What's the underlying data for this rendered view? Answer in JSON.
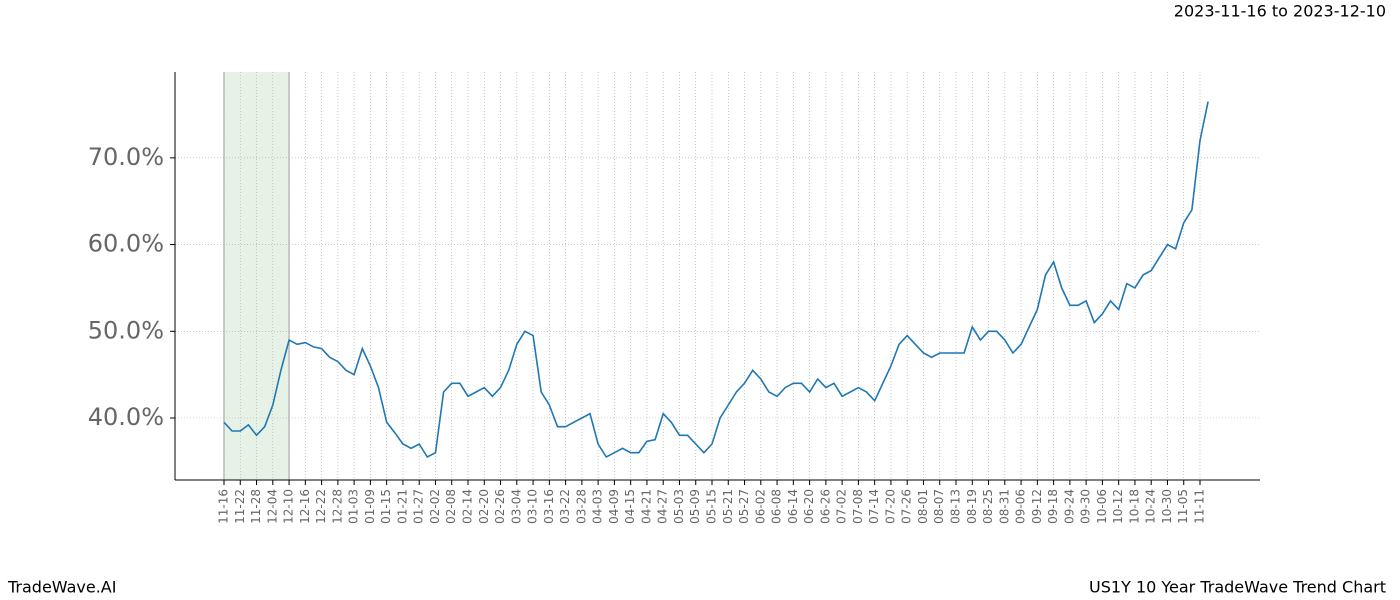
{
  "chart_data": {
    "type": "line",
    "title": "2023-11-16 to 2023-12-10",
    "footer_left": "TradeWave.AI",
    "footer_right": "US1Y 10 Year TradeWave Trend Chart",
    "categories": [
      "11-16",
      null,
      "11-22",
      null,
      "11-28",
      null,
      "12-04",
      null,
      "12-10",
      null,
      "12-16",
      null,
      "12-22",
      null,
      "12-28",
      null,
      "01-03",
      null,
      "01-09",
      null,
      "01-15",
      null,
      "01-21",
      null,
      "01-27",
      null,
      "02-02",
      null,
      "02-08",
      null,
      "02-14",
      null,
      "02-20",
      null,
      "02-26",
      null,
      "03-04",
      null,
      "03-10",
      null,
      "03-16",
      null,
      "03-22",
      null,
      "03-28",
      null,
      "04-03",
      null,
      "04-09",
      null,
      "04-15",
      null,
      "04-21",
      null,
      "04-27",
      null,
      "05-03",
      null,
      "05-09",
      null,
      "05-15",
      null,
      "05-21",
      null,
      "05-27",
      null,
      "06-02",
      null,
      "06-08",
      null,
      "06-14",
      null,
      "06-20",
      null,
      "06-26",
      null,
      "07-02",
      null,
      "07-08",
      null,
      "07-14",
      null,
      "07-20",
      null,
      "07-26",
      null,
      "08-01",
      null,
      "08-07",
      null,
      "08-13",
      null,
      "08-19",
      null,
      "08-25",
      null,
      "08-31",
      null,
      "09-06",
      null,
      "09-12",
      null,
      "09-18",
      null,
      "09-24",
      null,
      "09-30",
      null,
      "10-06",
      null,
      "10-12",
      null,
      "10-18",
      null,
      "10-24",
      null,
      "10-30",
      null,
      "11-05",
      null,
      "11-11",
      null
    ],
    "series": [
      {
        "name": "US1Y",
        "color": "#1f77b4",
        "values": [
          39.5,
          38.5,
          38.5,
          39.2,
          38.0,
          39.0,
          41.5,
          45.5,
          49.0,
          48.5,
          48.7,
          48.2,
          48.0,
          47.0,
          46.5,
          45.5,
          45.0,
          48.0,
          46.0,
          43.5,
          39.5,
          38.3,
          37.0,
          36.5,
          37.0,
          35.5,
          36.0,
          43.0,
          44.0,
          44.0,
          42.5,
          43.0,
          43.5,
          42.5,
          43.5,
          45.5,
          48.5,
          50.0,
          49.5,
          43.0,
          41.5,
          39.0,
          39.0,
          39.5,
          40.0,
          40.5,
          37.0,
          35.5,
          36.0,
          36.5,
          36.0,
          36.0,
          37.3,
          37.5,
          40.5,
          39.5,
          38.0,
          38.0,
          37.0,
          36.0,
          37.0,
          40.0,
          41.5,
          43.0,
          44.0,
          45.5,
          44.5,
          43.0,
          42.5,
          43.5,
          44.0,
          44.0,
          43.0,
          44.5,
          43.5,
          44.0,
          42.5,
          43.0,
          43.5,
          43.0,
          42.0,
          44.0,
          46.0,
          48.5,
          49.5,
          48.5,
          47.5,
          47.0,
          47.5,
          47.5,
          47.5,
          47.5,
          50.5,
          49.0,
          50.0,
          50.0,
          49.0,
          47.5,
          48.5,
          50.5,
          52.5,
          56.5,
          58.0,
          55.0,
          53.0,
          53.0,
          53.5,
          51.0,
          52.0,
          53.5,
          52.5,
          55.5,
          55.0,
          56.5,
          57.0,
          58.5,
          60.0,
          59.5,
          62.5,
          64.0,
          72.0,
          76.5
        ]
      }
    ],
    "ylim": [
      32.85,
      79.9
    ],
    "yticks": [
      {
        "value": 40,
        "label": "40.0%"
      },
      {
        "value": 50,
        "label": "50.0%"
      },
      {
        "value": 60,
        "label": "60.0%"
      },
      {
        "value": 70,
        "label": "70.0%"
      }
    ],
    "grid": true,
    "highlight": [
      "11-16",
      "12-10"
    ],
    "highlight_color": "#e6f2e6"
  }
}
